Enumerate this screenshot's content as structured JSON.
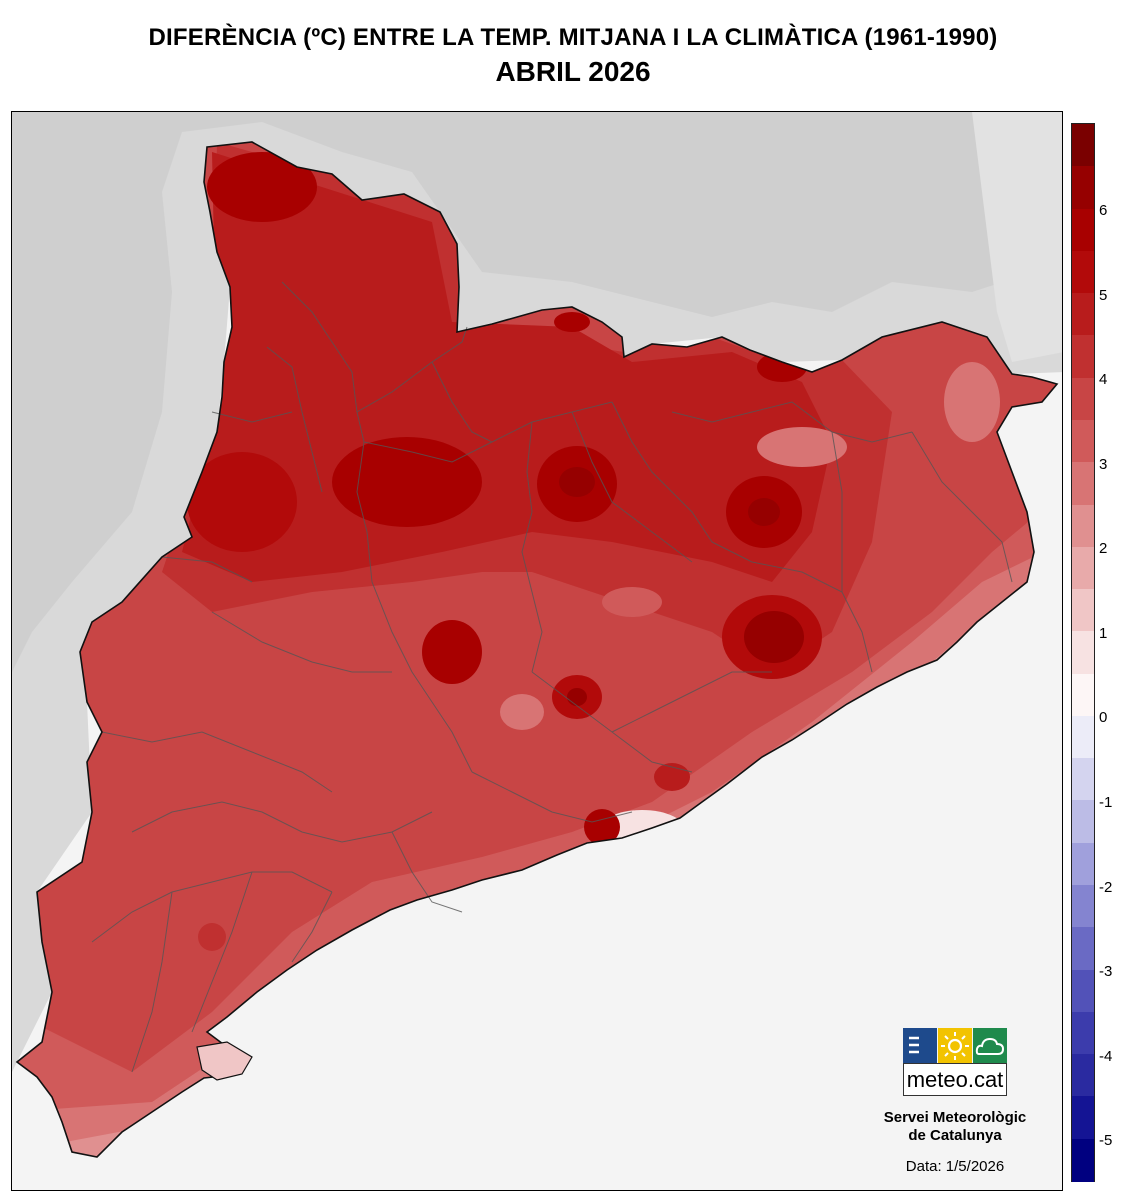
{
  "title": {
    "line1": "DIFERÈNCIA (ºC) ENTRE LA TEMP. MITJANA I LA CLIMÀTICA (1961-1990)",
    "line2": "ABRIL 2026"
  },
  "logo": {
    "text": "meteo.cat",
    "icons": [
      "menu-lines-icon",
      "sun-icon",
      "cloud-icon"
    ],
    "colors": [
      "#1e4a8c",
      "#f2c300",
      "#1f8a4c"
    ]
  },
  "organization": {
    "line1": "Servei Meteorològic",
    "line2": "de Catalunya"
  },
  "date_label": "Data: 1/5/2026",
  "legend": {
    "unit": "ºC",
    "tick_labels": [
      "6",
      "5",
      "4",
      "3",
      "2",
      "1",
      "0",
      "-1",
      "-2",
      "-3",
      "-4",
      "-5"
    ],
    "bins": [
      {
        "from": 6.5,
        "to": 7.0,
        "color": "#7a0000"
      },
      {
        "from": 6.0,
        "to": 6.5,
        "color": "#960000"
      },
      {
        "from": 5.5,
        "to": 6.0,
        "color": "#a80000"
      },
      {
        "from": 5.0,
        "to": 5.5,
        "color": "#b20a0a"
      },
      {
        "from": 4.5,
        "to": 5.0,
        "color": "#b81c1c"
      },
      {
        "from": 4.0,
        "to": 4.5,
        "color": "#c03030"
      },
      {
        "from": 3.5,
        "to": 4.0,
        "color": "#c84545"
      },
      {
        "from": 3.0,
        "to": 3.5,
        "color": "#d05a5a"
      },
      {
        "from": 2.5,
        "to": 3.0,
        "color": "#d87474"
      },
      {
        "from": 2.0,
        "to": 2.5,
        "color": "#e09090"
      },
      {
        "from": 1.5,
        "to": 2.0,
        "color": "#e8aaaa"
      },
      {
        "from": 1.0,
        "to": 1.5,
        "color": "#f0c6c6"
      },
      {
        "from": 0.5,
        "to": 1.0,
        "color": "#f7e2e2"
      },
      {
        "from": 0.0,
        "to": 0.5,
        "color": "#fdf6f6"
      },
      {
        "from": -0.5,
        "to": 0.0,
        "color": "#ececf8"
      },
      {
        "from": -1.0,
        "to": -0.5,
        "color": "#d4d4ef"
      },
      {
        "from": -1.5,
        "to": -1.0,
        "color": "#bcbce6"
      },
      {
        "from": -2.0,
        "to": -1.5,
        "color": "#a0a0dc"
      },
      {
        "from": -2.5,
        "to": -2.0,
        "color": "#8484d0"
      },
      {
        "from": -3.0,
        "to": -2.5,
        "color": "#6a6ac4"
      },
      {
        "from": -3.5,
        "to": -3.0,
        "color": "#5252b8"
      },
      {
        "from": -4.0,
        "to": -3.5,
        "color": "#3c3cac"
      },
      {
        "from": -4.5,
        "to": -4.0,
        "color": "#2a2aa0"
      },
      {
        "from": -5.0,
        "to": -4.5,
        "color": "#141494"
      },
      {
        "from": -5.5,
        "to": -5.0,
        "color": "#000080"
      }
    ]
  }
}
